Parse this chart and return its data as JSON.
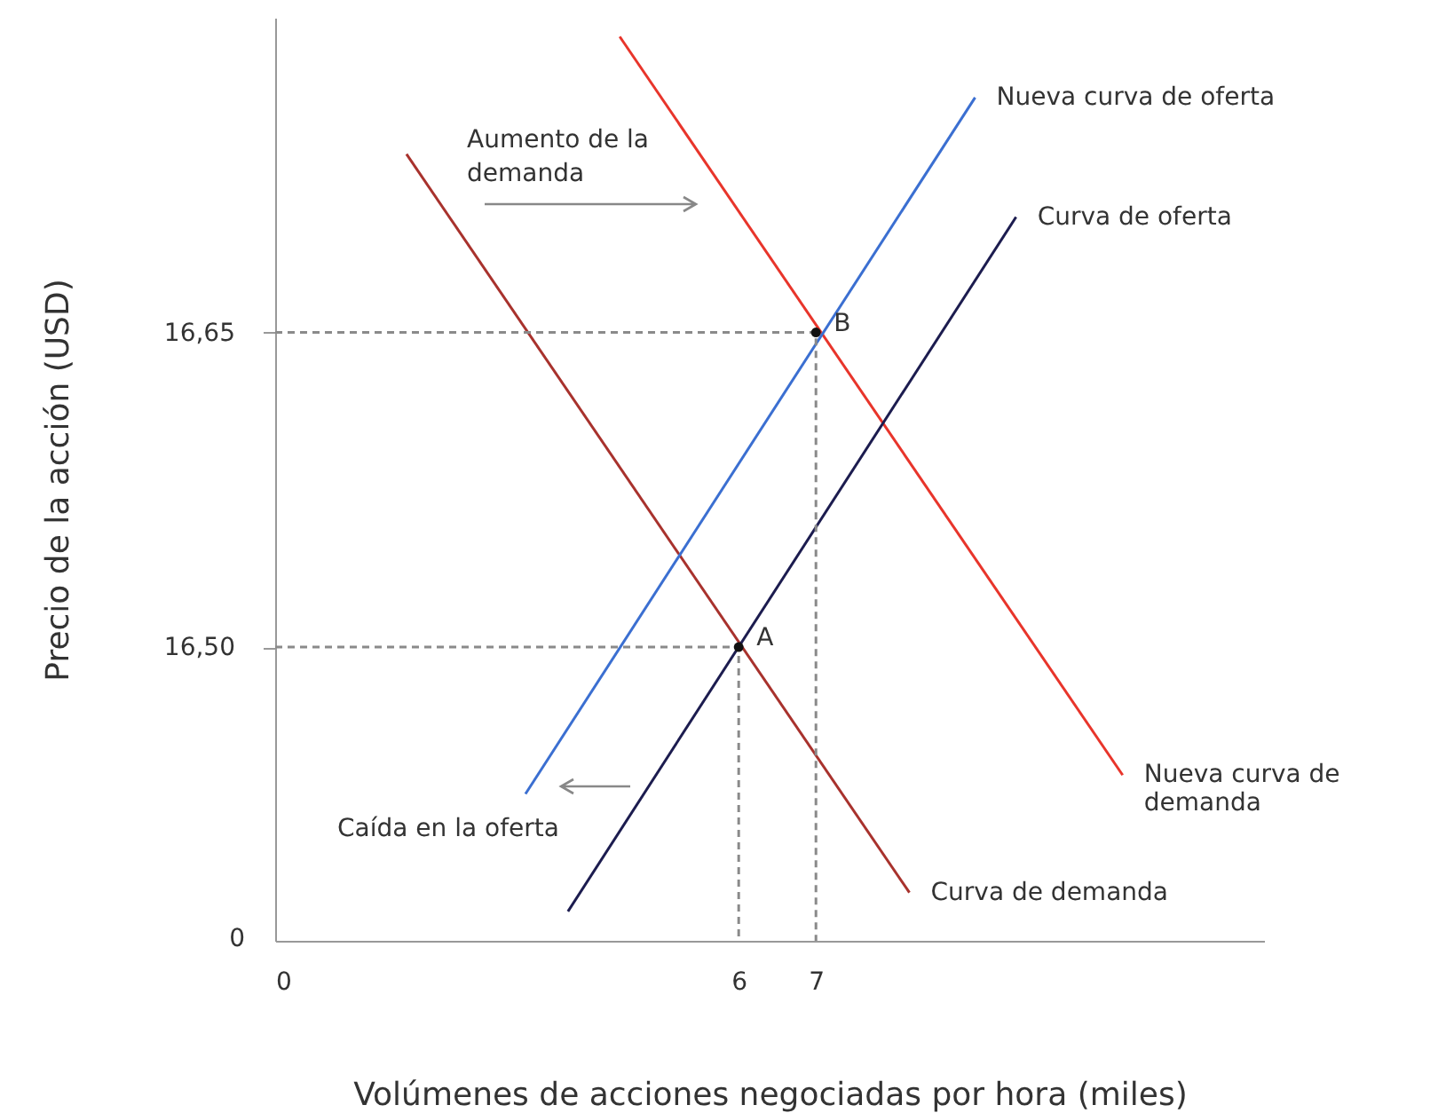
{
  "chart_data": {
    "type": "line",
    "xlabel": "Volúmenes de acciones negociadas por hora (miles)",
    "ylabel": "Precio de la acción (USD)",
    "xlim": [
      0,
      12.8
    ],
    "xticks": [
      0,
      6,
      7
    ],
    "ylim": [
      16.36,
      16.8
    ],
    "yticks": [
      {
        "value": 16.5,
        "label": "16,50"
      },
      {
        "value": 16.65,
        "label": "16,65"
      }
    ],
    "grid": false,
    "legend": false,
    "series": [
      {
        "name": "Curva de demanda",
        "color": "#a8322d",
        "x": [
          1.7,
          8.21
        ],
        "values": [
          16.735,
          16.383
        ],
        "line_style": "solid"
      },
      {
        "name": "Nueva curva de demanda",
        "color": "#e8352b",
        "x": [
          4.46,
          10.97
        ],
        "values": [
          16.791,
          16.439
        ],
        "line_style": "solid"
      },
      {
        "name": "Curva de oferta",
        "color": "#1c1c4f",
        "x": [
          3.79,
          9.59
        ],
        "values": [
          16.374,
          16.705
        ],
        "line_style": "solid"
      },
      {
        "name": "Nueva curva de oferta",
        "color": "#3b6fd1",
        "x": [
          3.24,
          9.06
        ],
        "values": [
          16.43,
          16.762
        ],
        "line_style": "solid"
      },
      {
        "color": "#8a8a8a",
        "x": [
          0,
          6,
          6
        ],
        "values": [
          16.5,
          16.5,
          16.36
        ],
        "line_style": "dashed"
      },
      {
        "color": "#8a8a8a",
        "x": [
          0,
          7,
          7
        ],
        "values": [
          16.65,
          16.65,
          16.36
        ],
        "line_style": "dashed"
      },
      {
        "type": "scatter",
        "color": "#111111",
        "x": [
          6,
          7
        ],
        "values": [
          16.5,
          16.65
        ],
        "marker": "circle"
      }
    ],
    "annotations": [
      "Aumento de la demanda",
      "Caída en la oferta",
      "0",
      {
        "text": "A",
        "x": 6,
        "y": 16.5
      },
      {
        "text": "B",
        "x": 7,
        "y": 16.65
      }
    ]
  }
}
